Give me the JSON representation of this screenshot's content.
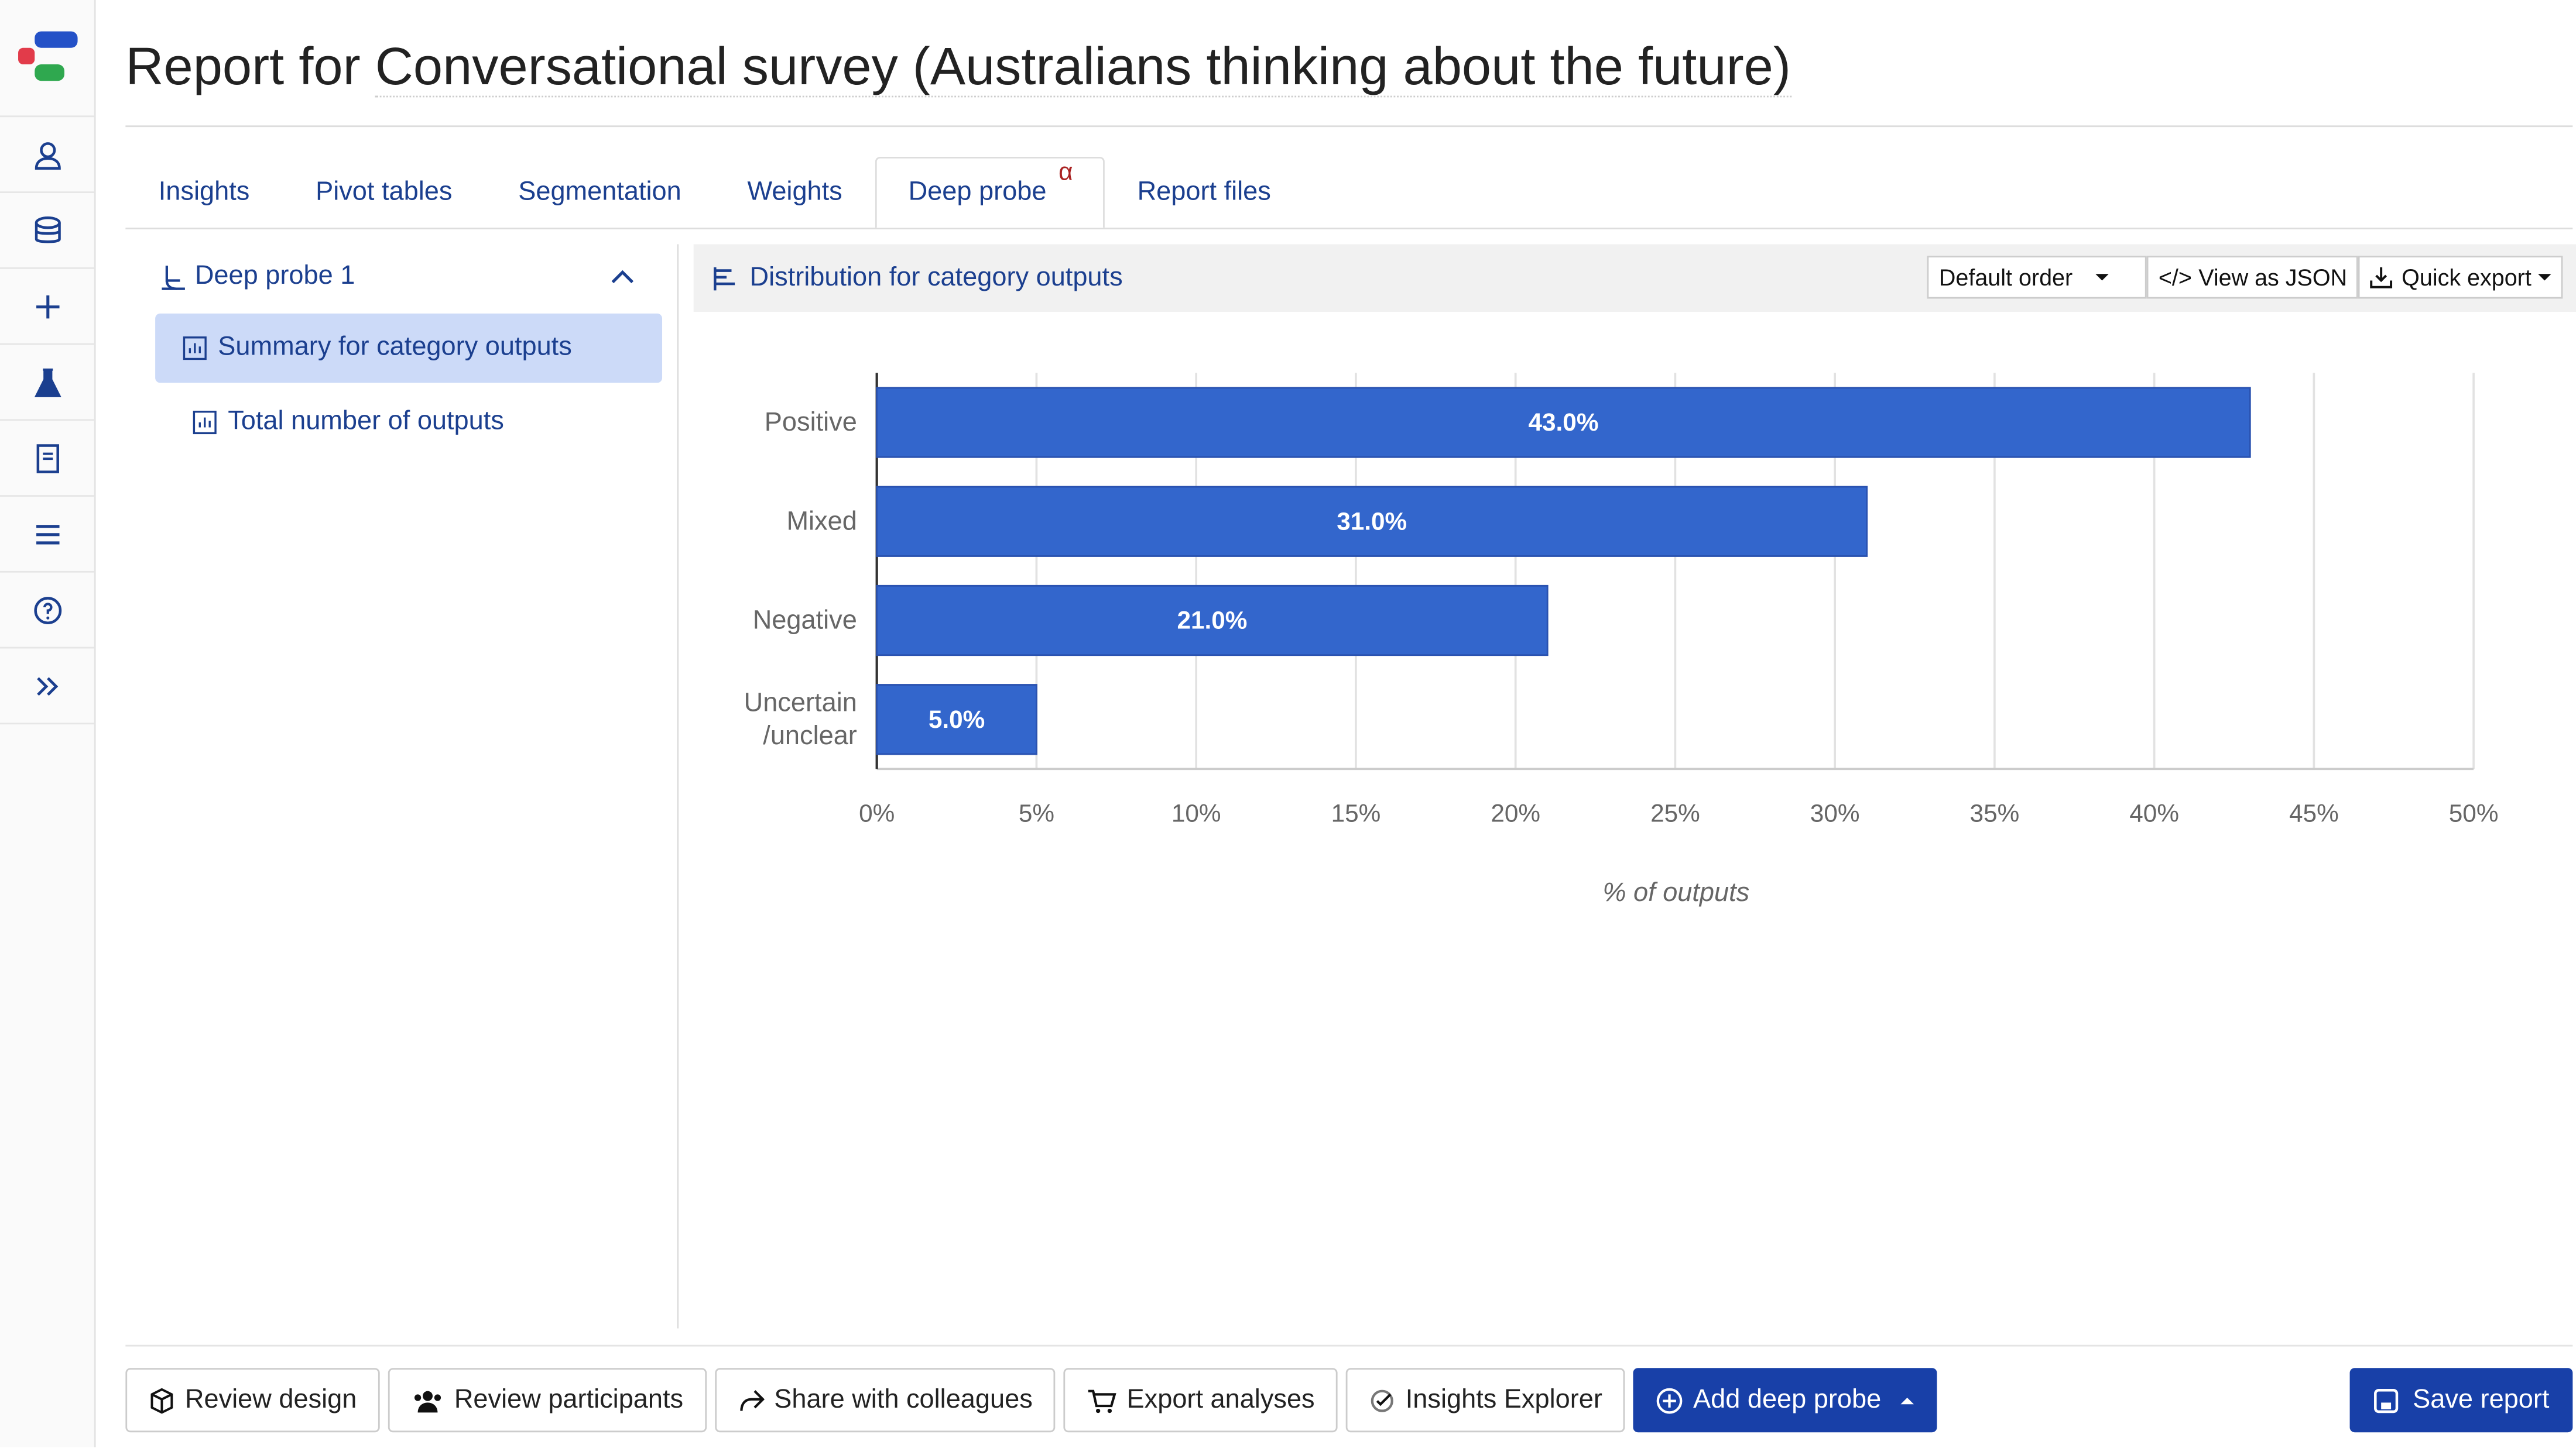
{
  "header": {
    "title_prefix": "Report for",
    "title": "Conversational survey (Australians thinking about the future)"
  },
  "tabs": [
    {
      "label": "Insights"
    },
    {
      "label": "Pivot tables"
    },
    {
      "label": "Segmentation"
    },
    {
      "label": "Weights"
    },
    {
      "label": "Deep probe",
      "badge": "α",
      "active": true
    },
    {
      "label": "Report files"
    }
  ],
  "sidebar": {
    "group": "Deep probe 1",
    "items": [
      {
        "label": "Summary for category outputs",
        "selected": true
      },
      {
        "label": "Total number of outputs"
      }
    ]
  },
  "panel": {
    "title": "Distribution for category outputs",
    "toolbar": [
      "Default order",
      "View as JSON",
      "Quick export"
    ]
  },
  "chart_data": {
    "type": "bar",
    "orientation": "horizontal",
    "categories": [
      "Positive",
      "Mixed",
      "Negative",
      "Uncertain\n/unclear"
    ],
    "values": [
      43,
      31,
      21,
      5
    ],
    "value_labels": [
      "43.0%",
      "31.0%",
      "21.0%",
      "5.0%"
    ],
    "color": "#3366cc",
    "xlim": [
      0,
      50
    ],
    "xticks": [
      {
        "value": 0,
        "label": "0%"
      },
      {
        "value": 5,
        "label": "5%"
      },
      {
        "value": 10,
        "label": "10%"
      },
      {
        "value": 15,
        "label": "15%"
      },
      {
        "value": 20,
        "label": "20%"
      },
      {
        "value": 25,
        "label": "25%"
      },
      {
        "value": 30,
        "label": "30%"
      },
      {
        "value": 35,
        "label": "35%"
      },
      {
        "value": 40,
        "label": "40%"
      },
      {
        "value": 45,
        "label": "45%"
      },
      {
        "value": 50,
        "label": "50%"
      }
    ],
    "xlabel": "% of outputs",
    "grid": true
  },
  "footer": {
    "buttons": [
      {
        "label": "Review design"
      },
      {
        "label": "Review participants"
      },
      {
        "label": "Share with colleagues"
      },
      {
        "label": "Export analyses"
      },
      {
        "label": "Insights Explorer"
      },
      {
        "label": "Add deep probe",
        "primary": true
      }
    ],
    "save": "Save report"
  }
}
